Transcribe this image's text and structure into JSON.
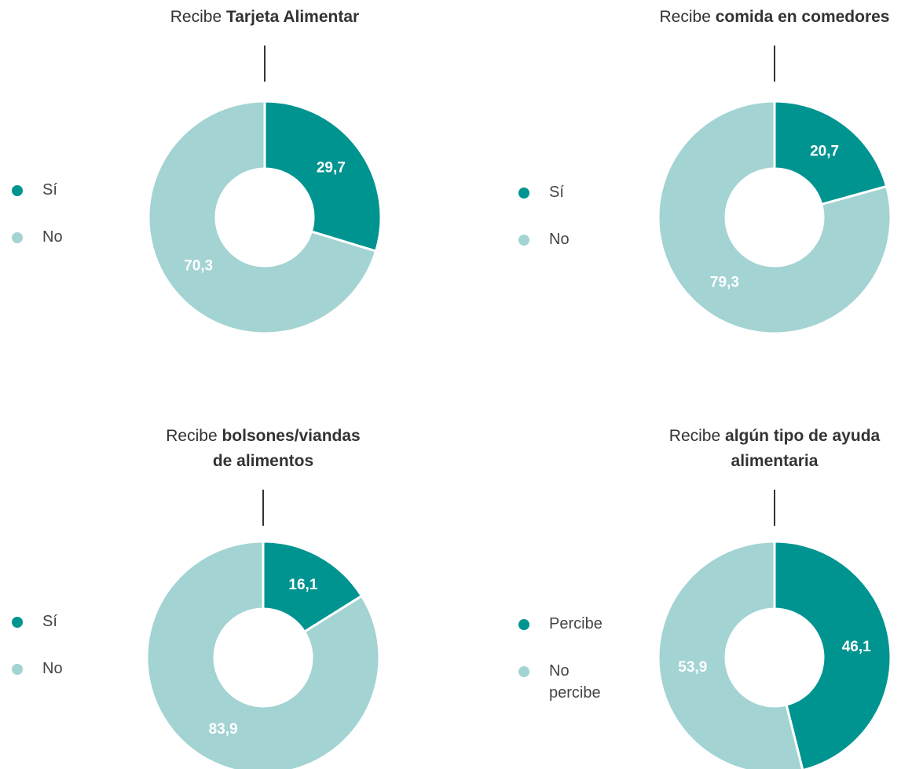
{
  "chart_data": [
    {
      "type": "pie",
      "title": {
        "prefix": "Recibe",
        "emphasis": [
          "Tarjeta Alimentar"
        ]
      },
      "categories": [
        "Sí",
        "No"
      ],
      "values": [
        29.7,
        70.3
      ],
      "value_labels": [
        "29,7",
        "70,3"
      ],
      "colors": [
        "#009490",
        "#a3d3d3"
      ]
    },
    {
      "type": "pie",
      "title": {
        "prefix": "Recibe",
        "emphasis": [
          "comida en comedores"
        ]
      },
      "categories": [
        "Sí",
        "No"
      ],
      "values": [
        20.7,
        79.3
      ],
      "value_labels": [
        "20,7",
        "79,3"
      ],
      "colors": [
        "#009490",
        "#a3d3d3"
      ]
    },
    {
      "type": "pie",
      "title": {
        "prefix": "Recibe",
        "emphasis": [
          "bolsones/viandas",
          "de alimentos"
        ]
      },
      "categories": [
        "Sí",
        "No"
      ],
      "values": [
        16.1,
        83.9
      ],
      "value_labels": [
        "16,1",
        "83,9"
      ],
      "colors": [
        "#009490",
        "#a3d3d3"
      ]
    },
    {
      "type": "pie",
      "title": {
        "prefix": "Recibe",
        "emphasis": [
          "algún tipo de ayuda",
          "alimentaria"
        ]
      },
      "categories": [
        "Percibe",
        "No percibe"
      ],
      "values": [
        46.1,
        53.9
      ],
      "value_labels": [
        "46,1",
        "53,9"
      ],
      "colors": [
        "#009490",
        "#a3d3d3"
      ]
    }
  ]
}
